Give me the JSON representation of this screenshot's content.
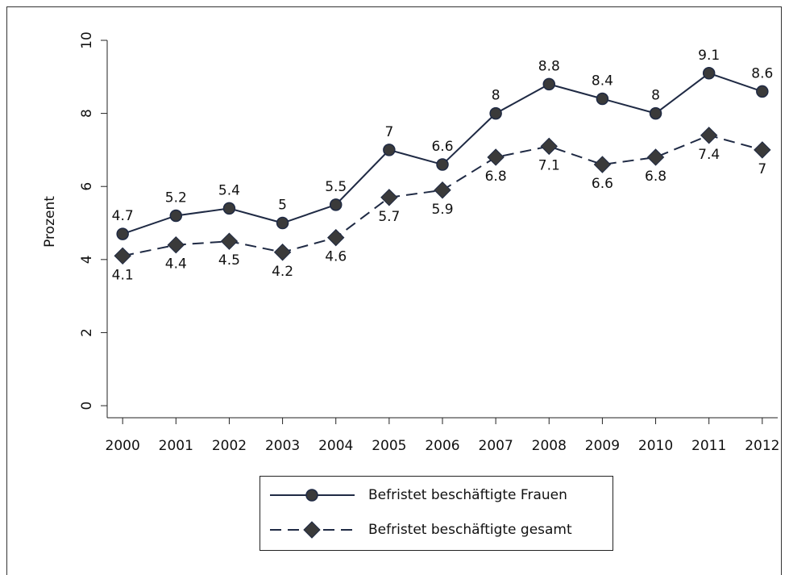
{
  "chart_data": {
    "type": "line",
    "y_label": "Prozent",
    "x": [
      2000,
      2001,
      2002,
      2003,
      2004,
      2005,
      2006,
      2007,
      2008,
      2009,
      2010,
      2011,
      2012
    ],
    "xlim": [
      1999.71,
      2012.29
    ],
    "xticks": [
      2000,
      2001,
      2002,
      2003,
      2004,
      2005,
      2006,
      2007,
      2008,
      2009,
      2010,
      2011,
      2012
    ],
    "ylim": [
      -0.33,
      10
    ],
    "yticks": [
      0,
      2,
      4,
      6,
      8,
      10
    ],
    "legend": "bottom",
    "series": [
      {
        "name": "Befristet beschäftigte Frauen",
        "color": "#1f2a44",
        "marker": "circle",
        "dash": false,
        "label_position": "above",
        "values": [
          4.7,
          5.2,
          5.4,
          5,
          5.5,
          7,
          6.6,
          8,
          8.8,
          8.4,
          8,
          9.1,
          8.6
        ]
      },
      {
        "name": "Befristet beschäftigte gesamt",
        "color": "#1f2a44",
        "marker": "diamond",
        "dash": true,
        "label_position": "below",
        "values": [
          4.1,
          4.4,
          4.5,
          4.2,
          4.6,
          5.7,
          5.9,
          6.8,
          7.1,
          6.6,
          6.8,
          7.4,
          7
        ]
      }
    ]
  }
}
